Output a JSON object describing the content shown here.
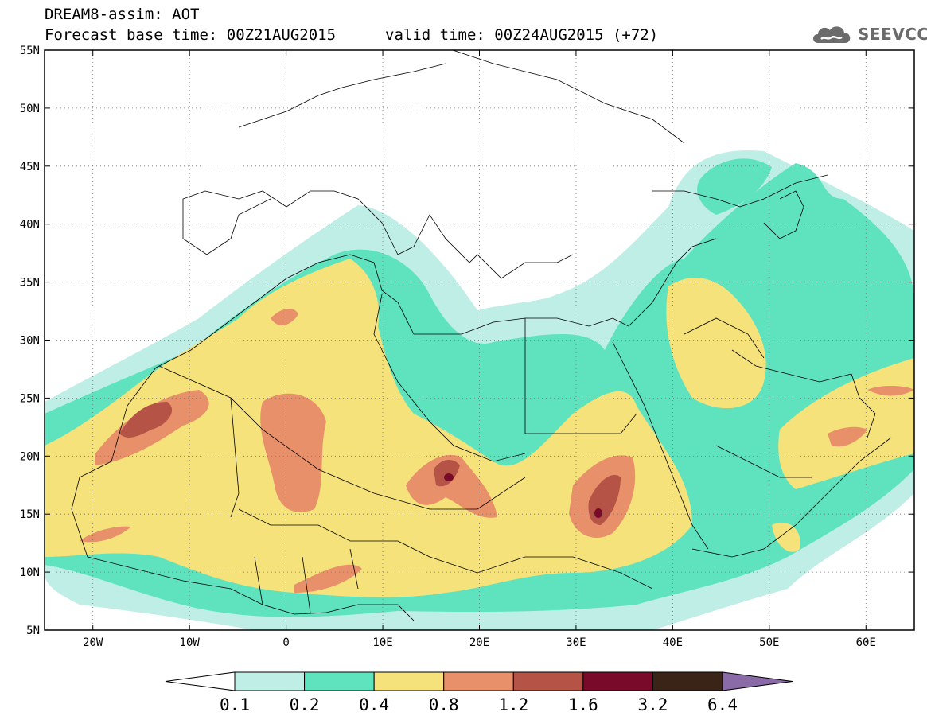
{
  "header": {
    "title": "DREAM8-assim: AOT",
    "base_time": "Forecast base time: 00Z21AUG2015",
    "valid_time": "valid time: 00Z24AUG2015 (+72)",
    "logo_text": "SEEVCCC",
    "logo_icon": "cloud-icon"
  },
  "map": {
    "projection": "cylindrical lat-lon",
    "lat_range": [
      5,
      55
    ],
    "lon_range": [
      -25,
      65
    ],
    "lat_tick_values": [
      55,
      50,
      45,
      40,
      35,
      30,
      25,
      20,
      15,
      10,
      5
    ],
    "lat_labels": [
      "55N",
      "50N",
      "45N",
      "40N",
      "35N",
      "30N",
      "25N",
      "20N",
      "15N",
      "10N",
      "5N"
    ],
    "lon_tick_values": [
      -20,
      -10,
      0,
      10,
      20,
      30,
      40,
      50,
      60
    ],
    "lon_labels": [
      "20W",
      "10W",
      "0",
      "10E",
      "20E",
      "30E",
      "40E",
      "50E",
      "60E"
    ],
    "gridlines": "dotted",
    "variable": "Aerosol optical thickness (AOT)"
  },
  "colorbar": {
    "labels": [
      "0.1",
      "0.2",
      "0.4",
      "0.8",
      "1.2",
      "1.6",
      "3.2",
      "6.4"
    ],
    "colors": [
      "#ffffff",
      "#bfeee6",
      "#5fe3bf",
      "#f5e27a",
      "#e8906a",
      "#b55347",
      "#7a0a2a",
      "#3a2418",
      "#8b6aa8"
    ],
    "extend": "both"
  },
  "colors": {
    "c1": "#bfeee6",
    "c2": "#5fe3bf",
    "c3": "#f5e27a",
    "c4": "#e8906a",
    "c5": "#b55347",
    "c6": "#7a0a2a"
  }
}
